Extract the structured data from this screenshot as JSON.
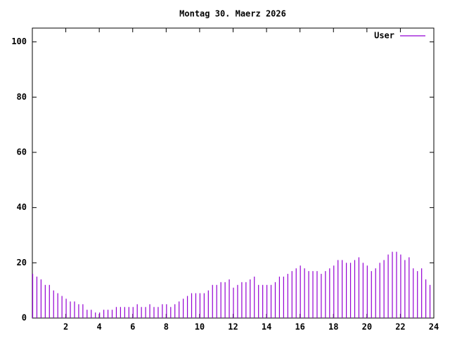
{
  "chart_data": {
    "type": "impulse",
    "title": "Montag 30. Maerz 2026",
    "x": [
      0,
      0.25,
      0.5,
      0.75,
      1,
      1.25,
      1.5,
      1.75,
      2,
      2.25,
      2.5,
      2.75,
      3,
      3.25,
      3.5,
      3.75,
      4,
      4.25,
      4.5,
      4.75,
      5,
      5.25,
      5.5,
      5.75,
      6,
      6.25,
      6.5,
      6.75,
      7,
      7.25,
      7.5,
      7.75,
      8,
      8.25,
      8.5,
      8.75,
      9,
      9.25,
      9.5,
      9.75,
      10,
      10.25,
      10.5,
      10.75,
      11,
      11.25,
      11.5,
      11.75,
      12,
      12.25,
      12.5,
      12.75,
      13,
      13.25,
      13.5,
      13.75,
      14,
      14.25,
      14.5,
      14.75,
      15,
      15.25,
      15.5,
      15.75,
      16,
      16.25,
      16.5,
      16.75,
      17,
      17.25,
      17.5,
      17.75,
      18,
      18.25,
      18.5,
      18.75,
      19,
      19.25,
      19.5,
      19.75,
      20,
      20.25,
      20.5,
      20.75,
      21,
      21.25,
      21.5,
      21.75,
      22,
      22.25,
      22.5,
      22.75,
      23,
      23.25,
      23.5,
      23.75
    ],
    "series": [
      {
        "name": "User",
        "color": "#9400d3",
        "values": [
          16,
          15,
          14,
          12,
          12,
          10,
          9,
          8,
          7,
          6,
          6,
          5,
          5,
          3,
          3,
          2,
          2,
          3,
          3,
          3,
          4,
          4,
          4,
          4,
          4,
          5,
          4,
          4,
          5,
          4,
          4,
          5,
          5,
          4,
          5,
          6,
          7,
          8,
          9,
          9,
          9,
          9,
          10,
          12,
          12,
          13,
          13,
          14,
          11,
          12,
          13,
          13,
          14,
          15,
          12,
          12,
          12,
          12,
          13,
          15,
          15,
          16,
          17,
          18,
          19,
          18,
          17,
          17,
          17,
          16,
          17,
          18,
          19,
          21,
          21,
          20,
          20,
          21,
          22,
          20,
          19,
          17,
          18,
          20,
          21,
          23,
          24,
          24,
          23,
          21,
          22,
          18,
          17,
          18,
          14,
          12
        ]
      }
    ],
    "xlim": [
      0,
      24
    ],
    "xticks": [
      2,
      4,
      6,
      8,
      10,
      12,
      14,
      16,
      18,
      20,
      22,
      24
    ],
    "ylim": [
      0,
      105
    ],
    "yticks": [
      0,
      20,
      40,
      60,
      80,
      100
    ],
    "legend": "top-right"
  }
}
